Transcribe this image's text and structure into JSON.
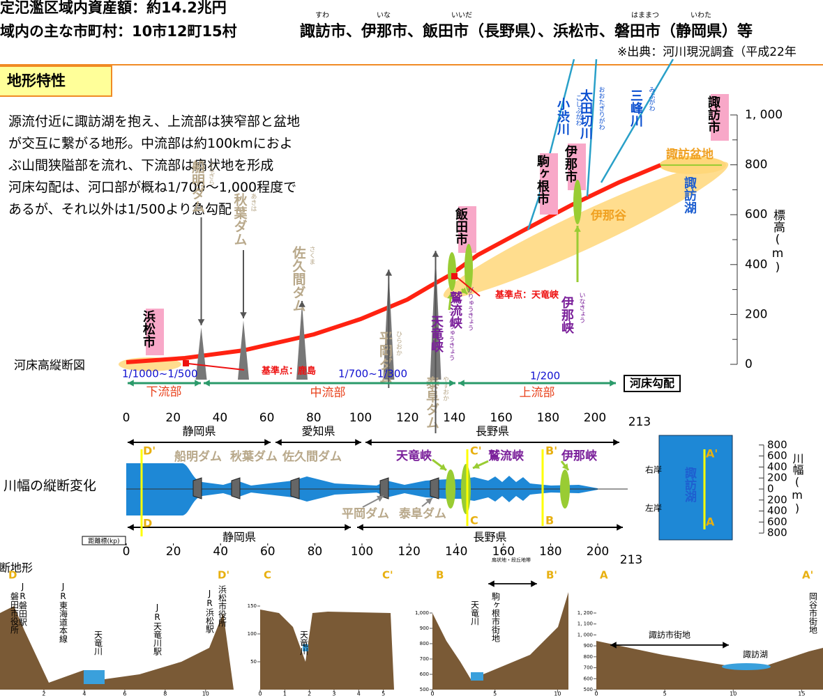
{
  "header": {
    "assets": "定氾濫区域内資産額：約14.2兆円",
    "municipalities_label": "域内の主な市町村：10市12町15村",
    "municipalities": "諏訪市、伊那市、飯田市（長野県）、浜松市、磐田市（静岡県）等",
    "ruby": [
      "すわ",
      "いな",
      "いいだ",
      "はままつ",
      "いわた"
    ],
    "source": "※出典：河川現況調査（平成22年"
  },
  "section_title": "地形特性",
  "description": [
    "源流付近に諏訪湖を抱え、上流部は狭窄部と盆地",
    "が交互に繋がる地形。中流部は約100kmにおよ",
    "ぶ山間狭隘部を流れ、下流部は扇状地を形成",
    "河床勾配は、河口部が概ね1/700～1,000程度で",
    "あるが、それ以外は1/500より急勾配"
  ],
  "profile": {
    "title": "河床高縦断図",
    "y_label": "標高(m)",
    "yticks": [
      0,
      200,
      400,
      600,
      800,
      {
        "value": 1000,
        "label": "1, 000"
      }
    ],
    "xticks": [
      0,
      20,
      40,
      60,
      80,
      100,
      120,
      140,
      160,
      180,
      200
    ],
    "x_end": 213,
    "cities": [
      "浜松市",
      "飯田市",
      "駒ヶ根市",
      "伊那市",
      "諏訪市"
    ],
    "dams": [
      {
        "name": "船明ダム",
        "ruby": "ふなぎら"
      },
      {
        "name": "秋葉ダム",
        "ruby": "あきは"
      },
      {
        "name": "佐久間ダム",
        "ruby": "さくま"
      },
      {
        "name": "平岡ダム",
        "ruby": "ひらおか"
      },
      {
        "name": "泰阜ダム",
        "ruby": "やすおか"
      }
    ],
    "gorges": [
      {
        "name": "天竜峡",
        "ruby": "てんりゅうきょう"
      },
      {
        "name": "鷲流峡",
        "ruby": "がりゅうきょう"
      },
      {
        "name": "伊那峡",
        "ruby": "いなきょう"
      }
    ],
    "rivers": [
      {
        "name": "小渋川",
        "ruby": "こしぶがわ"
      },
      {
        "name": "太田切川",
        "ruby": "おおたぎりがわ"
      },
      {
        "name": "三峰川",
        "ruby": "みぶがわ"
      }
    ],
    "basin": "諏訪盆地",
    "valley": "伊那谷",
    "lake": "諏訪湖",
    "ref_points": [
      "基準点：鹿島",
      "基準点：天竜峡"
    ],
    "gradients": [
      "1/1000~1/500",
      "1/700~1/300",
      "1/200"
    ],
    "gradient_label": "河床勾配",
    "segments": [
      "下流部",
      "中流部",
      "上流部"
    ]
  },
  "width": {
    "title": "川幅の縦断変化",
    "prefs_top": [
      "静岡県",
      "愛知県",
      "長野県"
    ],
    "prefs_bottom": [
      "静岡県",
      "長野県"
    ],
    "dams": [
      "船明ダム",
      "秋葉ダム",
      "佐久間ダム",
      "平岡ダム",
      "泰阜ダム"
    ],
    "gorges": [
      "天竜峡",
      "鷲流峡",
      "伊那峡"
    ],
    "sections": [
      "D'",
      "D",
      "C'",
      "C",
      "B'",
      "B",
      "A'",
      "A"
    ],
    "right_bank": "右岸",
    "left_bank": "左岸",
    "lake": "諏訪湖",
    "y_label": "川幅(m)",
    "yticks": [
      800,
      600,
      400,
      200,
      0,
      {
        "value": -200,
        "label": "200"
      },
      {
        "value": -400,
        "label": "400"
      },
      {
        "value": -600,
        "label": "600"
      },
      {
        "value": -800,
        "label": "800"
      }
    ],
    "kp_label": "距離標(kp)",
    "xticks": [
      0,
      20,
      40,
      60,
      80,
      100,
      120,
      140,
      160,
      180,
      200
    ],
    "x_end": 213
  },
  "cross": {
    "title": "横断地形",
    "panels": [
      {
        "ends": [
          "D",
          "D'"
        ],
        "labels": [
          "JR磐田駅",
          "磐田市役所",
          "JR東海道本線",
          "天竜川",
          "JR天竜川駅",
          "JR浜松駅",
          "浜松市役所"
        ],
        "xticks": [
          2,
          4,
          6,
          8,
          10
        ]
      },
      {
        "ends": [
          "C",
          "C'"
        ],
        "labels": [
          "天竜川"
        ],
        "xticks": [
          0,
          1,
          2,
          3,
          4,
          5
        ],
        "yticks": [
          50,
          100,
          150
        ]
      },
      {
        "ends": [
          "B",
          "B'"
        ],
        "labels": [
          "扇状地・段丘地帯",
          "駒ヶ根市街地",
          "天竜川"
        ],
        "xticks": [
          0,
          5,
          10
        ],
        "yticks": [
          {
            "value": 1000,
            "label": "1,000"
          },
          900,
          800,
          700,
          600,
          500
        ]
      },
      {
        "ends": [
          "A",
          "A'"
        ],
        "labels": [
          "諏訪市街地",
          "諏訪湖",
          "岡谷市街地"
        ],
        "xticks": [
          0,
          5,
          10,
          15
        ],
        "yticks": [
          {
            "value": 1200,
            "label": "1, 200"
          },
          {
            "value": 1100,
            "label": "1, 100"
          },
          {
            "value": 1000,
            "label": "1, 000"
          },
          900,
          800,
          700,
          600,
          500
        ]
      }
    ]
  }
}
